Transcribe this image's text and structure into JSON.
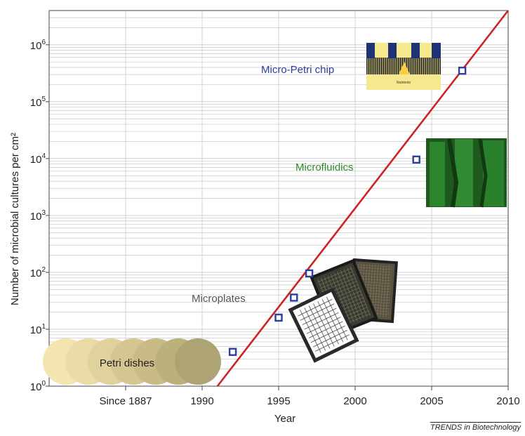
{
  "chart_data": {
    "type": "scatter",
    "xlabel": "Year",
    "ylabel": "Number of microbial cultures per cm²",
    "y_scale": "log",
    "xlim": [
      1980,
      2010
    ],
    "ylim": [
      1,
      4000000
    ],
    "x_tick_values": [
      1985,
      1990,
      1995,
      2000,
      2005,
      2010
    ],
    "x_tick_labels": [
      "Since 1887",
      "1990",
      "1995",
      "2000",
      "2005",
      "2010"
    ],
    "y_ticks": [
      {
        "value": 1,
        "base": "10",
        "exp": "0"
      },
      {
        "value": 10,
        "base": "10",
        "exp": "1"
      },
      {
        "value": 100,
        "base": "10",
        "exp": "2"
      },
      {
        "value": 1000,
        "base": "10",
        "exp": "3"
      },
      {
        "value": 10000,
        "base": "10",
        "exp": "4"
      },
      {
        "value": 100000,
        "base": "10",
        "exp": "5"
      },
      {
        "value": 1000000,
        "base": "10",
        "exp": "6"
      }
    ],
    "points": [
      {
        "x": 1992,
        "y": 4
      },
      {
        "x": 1995,
        "y": 16
      },
      {
        "x": 1996,
        "y": 36
      },
      {
        "x": 1997,
        "y": 96
      },
      {
        "x": 2004,
        "y": 9600
      },
      {
        "x": 2007,
        "y": 350000
      }
    ],
    "trend_line": [
      {
        "x": 1991,
        "y": 1
      },
      {
        "x": 2010,
        "y": 4000000
      }
    ],
    "colors": {
      "points": "#2b3f9e",
      "trend": "#cc2222",
      "grid": "#c8c8c8"
    },
    "annotations": [
      {
        "text": "Micro-Petri chip",
        "color": "#2b3f9e"
      },
      {
        "text": "Microfluidics",
        "color": "#2f8a2f"
      },
      {
        "text": "Microplates",
        "color": "#555555"
      },
      {
        "text": "Petri dishes",
        "color": "#222222"
      }
    ],
    "inset_labels": {
      "chip_nutrients": "Nutrients"
    }
  },
  "credit": "TRENDS in Biotechnology"
}
